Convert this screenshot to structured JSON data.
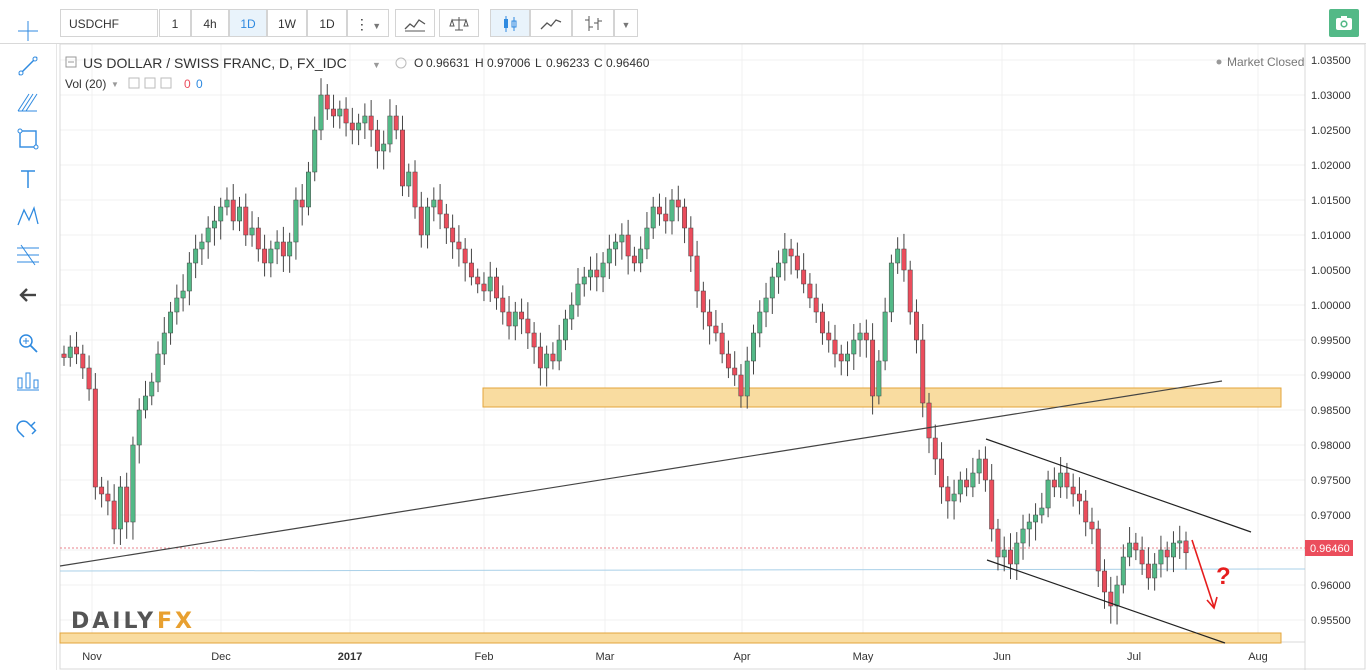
{
  "toolbar": {
    "symbol": "USDCHF",
    "intervals": [
      "1",
      "4h",
      "1D",
      "1W",
      "1D"
    ],
    "active_interval": "1D"
  },
  "left_tools": [
    "crosshair-icon",
    "trendline-icon",
    "pitchfork-icon",
    "rectangle-icon",
    "text-icon",
    "pattern-icon",
    "fib-icon",
    "back-arrow-icon",
    "zoom-icon",
    "compare-icon",
    "magnet-icon"
  ],
  "legend": {
    "title": "US DOLLAR / SWISS FRANC, D, FX_IDC",
    "o_label": "O",
    "o_value": "0.96631",
    "h_label": "H",
    "h_value": "0.97006",
    "l_label": "L",
    "l_value": "0.96233",
    "c_label": "C",
    "c_value": "0.96460",
    "vol_label": "Vol (20)",
    "vol_values": [
      "0",
      "0"
    ],
    "market_status": "Market Closed"
  },
  "watermark": {
    "part1": "DAILY",
    "part2": "FX"
  },
  "annotation": "?",
  "colors": {
    "up": "#53b987",
    "down": "#eb4d5c",
    "zone": "#f9dca0",
    "zone_border": "#e3a53b",
    "price_tag": "#eb4d5c",
    "annotation": "#e61d1d"
  },
  "chart_data": {
    "type": "candlestick",
    "instrument": "USDCHF",
    "timeframe": "1D",
    "ylim": [
      0.9505,
      1.0365
    ],
    "y_ticks": [
      "1.03500",
      "1.03000",
      "1.02500",
      "1.02000",
      "1.01500",
      "1.01000",
      "1.00500",
      "1.00000",
      "0.99500",
      "0.99000",
      "0.98500",
      "0.98000",
      "0.97500",
      "0.97000",
      "0.96500",
      "0.96000",
      "0.95500"
    ],
    "x_ticks": [
      "Nov",
      "Dec",
      "2017",
      "Feb",
      "Mar",
      "Apr",
      "May",
      "Jun",
      "Jul",
      "Aug"
    ],
    "last_price": "0.96460",
    "close_series": [
      0.9925,
      0.994,
      0.993,
      0.991,
      0.988,
      0.974,
      0.973,
      0.972,
      0.968,
      0.974,
      0.969,
      0.98,
      0.985,
      0.987,
      0.989,
      0.993,
      0.996,
      0.999,
      1.001,
      1.002,
      1.006,
      1.008,
      1.009,
      1.011,
      1.012,
      1.014,
      1.015,
      1.012,
      1.014,
      1.01,
      1.011,
      1.008,
      1.006,
      1.008,
      1.009,
      1.007,
      1.009,
      1.015,
      1.014,
      1.019,
      1.025,
      1.03,
      1.028,
      1.027,
      1.028,
      1.026,
      1.025,
      1.026,
      1.027,
      1.025,
      1.022,
      1.023,
      1.027,
      1.025,
      1.017,
      1.019,
      1.014,
      1.01,
      1.014,
      1.015,
      1.013,
      1.011,
      1.009,
      1.008,
      1.006,
      1.004,
      1.003,
      1.002,
      1.004,
      1.001,
      0.999,
      0.997,
      0.999,
      0.998,
      0.996,
      0.994,
      0.991,
      0.993,
      0.992,
      0.995,
      0.998,
      1.0,
      1.003,
      1.004,
      1.005,
      1.004,
      1.006,
      1.008,
      1.009,
      1.01,
      1.007,
      1.006,
      1.008,
      1.011,
      1.014,
      1.013,
      1.012,
      1.015,
      1.014,
      1.011,
      1.007,
      1.002,
      0.999,
      0.997,
      0.996,
      0.993,
      0.991,
      0.99,
      0.987,
      0.992,
      0.996,
      0.999,
      1.001,
      1.004,
      1.006,
      1.008,
      1.007,
      1.005,
      1.003,
      1.001,
      0.999,
      0.996,
      0.995,
      0.993,
      0.992,
      0.993,
      0.995,
      0.996,
      0.995,
      0.987,
      0.992,
      0.999,
      1.006,
      1.008,
      1.005,
      0.999,
      0.995,
      0.986,
      0.981,
      0.978,
      0.974,
      0.972,
      0.973,
      0.975,
      0.974,
      0.976,
      0.978,
      0.975,
      0.968,
      0.964,
      0.965,
      0.963,
      0.966,
      0.968,
      0.969,
      0.97,
      0.971,
      0.975,
      0.974,
      0.976,
      0.974,
      0.973,
      0.972,
      0.969,
      0.968,
      0.962,
      0.959,
      0.957,
      0.96,
      0.964,
      0.966,
      0.965,
      0.963,
      0.961,
      0.963,
      0.965,
      0.964,
      0.966,
      0.9663,
      0.9646
    ]
  }
}
